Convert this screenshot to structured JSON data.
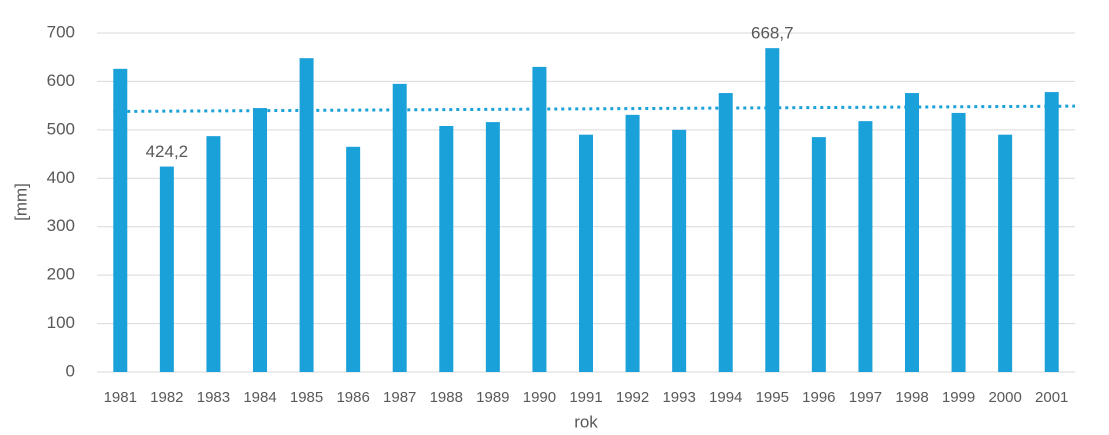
{
  "chart_data": {
    "type": "bar",
    "categories": [
      "1981",
      "1982",
      "1983",
      "1984",
      "1985",
      "1986",
      "1987",
      "1988",
      "1989",
      "1990",
      "1991",
      "1992",
      "1993",
      "1994",
      "1995",
      "1996",
      "1997",
      "1998",
      "1999",
      "2000",
      "2001"
    ],
    "values": [
      626,
      424.2,
      487,
      545,
      648,
      465,
      595,
      508,
      516,
      630,
      490,
      531,
      500,
      576,
      668.7,
      485,
      518,
      576,
      535,
      490,
      578
    ],
    "value_labels": [
      null,
      "424,2",
      null,
      null,
      null,
      null,
      null,
      null,
      null,
      null,
      null,
      null,
      null,
      null,
      "668,7",
      null,
      null,
      null,
      null,
      null,
      null
    ],
    "color": "#1ba1d9",
    "trend": {
      "start": 538,
      "end": 549,
      "color": "#1ba1d9"
    },
    "xlabel": "rok",
    "ylabel": "[mm]",
    "ylim": [
      0,
      700
    ],
    "yticks": [
      0,
      100,
      200,
      300,
      400,
      500,
      600,
      700
    ],
    "grid": true
  }
}
